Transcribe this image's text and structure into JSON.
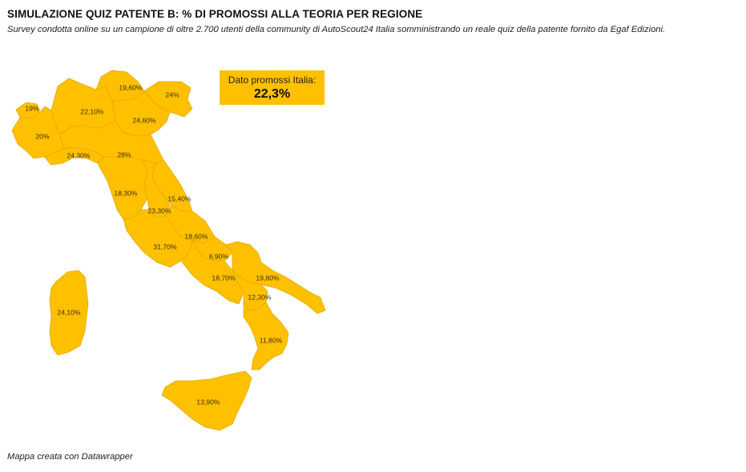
{
  "title": "SIMULAZIONE QUIZ PATENTE B: % DI PROMOSSI ALLA TEORIA PER REGIONE",
  "subtitle": "Survey condotta online su un campione di oltre 2.700 utenti della community di AutoScout24 Italia somministrando un reale quiz della patente fornito da Egaf Edizioni.",
  "callout": {
    "label": "Dato promossi Italia:",
    "value": "22,3%"
  },
  "footer": "Mappa creata con Datawrapper",
  "colors": {
    "region_fill": "#ffc000",
    "region_border": "#e3aa00",
    "callout_fill": "#ffc000",
    "background": "#ffffff"
  },
  "regions": [
    {
      "name": "Valle d'Aosta",
      "label": "19%",
      "value": 19.0
    },
    {
      "name": "Piemonte",
      "label": "20%",
      "value": 20.0
    },
    {
      "name": "Lombardia",
      "label": "22,10%",
      "value": 22.1
    },
    {
      "name": "Trentino-Alto Adige",
      "label": "19,60%",
      "value": 19.6
    },
    {
      "name": "Friuli-Venezia Giulia",
      "label": "24%",
      "value": 24.0
    },
    {
      "name": "Veneto",
      "label": "24,60%",
      "value": 24.6
    },
    {
      "name": "Liguria",
      "label": "24,30%",
      "value": 24.3
    },
    {
      "name": "Emilia-Romagna",
      "label": "28%",
      "value": 28.0
    },
    {
      "name": "Toscana",
      "label": "18,30%",
      "value": 18.3
    },
    {
      "name": "Marche",
      "label": "15,40%",
      "value": 15.4
    },
    {
      "name": "Umbria",
      "label": "23,30%",
      "value": 23.3
    },
    {
      "name": "Abruzzo",
      "label": "18,60%",
      "value": 18.6
    },
    {
      "name": "Lazio",
      "label": "31,70%",
      "value": 31.7
    },
    {
      "name": "Molise",
      "label": "6,90%",
      "value": 6.9
    },
    {
      "name": "Campania",
      "label": "18,70%",
      "value": 18.7
    },
    {
      "name": "Puglia",
      "label": "19,80%",
      "value": 19.8
    },
    {
      "name": "Basilicata",
      "label": "12,30%",
      "value": 12.3
    },
    {
      "name": "Calabria",
      "label": "11,80%",
      "value": 11.8
    },
    {
      "name": "Sicilia",
      "label": "13,90%",
      "value": 13.9
    },
    {
      "name": "Sardegna",
      "label": "24,10%",
      "value": 24.1
    }
  ]
}
